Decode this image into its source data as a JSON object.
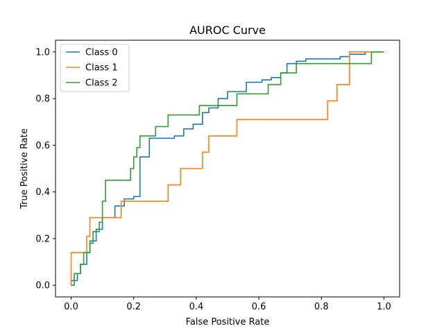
{
  "chart_data": {
    "type": "line",
    "title": "AUROC Curve",
    "xlabel": "False Positive Rate",
    "ylabel": "True Positive Rate",
    "xlim": [
      -0.05,
      1.05
    ],
    "ylim": [
      -0.05,
      1.05
    ],
    "xticks": [
      0.0,
      0.2,
      0.4,
      0.6,
      0.8,
      1.0
    ],
    "yticks": [
      0.0,
      0.2,
      0.4,
      0.6,
      0.8,
      1.0
    ],
    "xtick_labels": [
      "0.0",
      "0.2",
      "0.4",
      "0.6",
      "0.8",
      "1.0"
    ],
    "ytick_labels": [
      "0.0",
      "0.2",
      "0.4",
      "0.6",
      "0.8",
      "1.0"
    ],
    "grid": false,
    "legend_position": "top-left",
    "series": [
      {
        "name": "Class 0",
        "color": "#1f77b4",
        "x": [
          0.0,
          0.0,
          0.02,
          0.02,
          0.03,
          0.03,
          0.05,
          0.05,
          0.06,
          0.06,
          0.08,
          0.08,
          0.1,
          0.1,
          0.14,
          0.14,
          0.17,
          0.17,
          0.2,
          0.2,
          0.22,
          0.22,
          0.25,
          0.25,
          0.33,
          0.33,
          0.36,
          0.36,
          0.39,
          0.39,
          0.42,
          0.42,
          0.44,
          0.44,
          0.47,
          0.47,
          0.5,
          0.5,
          0.56,
          0.56,
          0.61,
          0.61,
          0.64,
          0.64,
          0.67,
          0.67,
          0.69,
          0.69,
          0.72,
          0.72,
          0.75,
          0.75,
          0.86,
          0.86,
          0.89,
          0.89,
          0.94,
          0.94,
          1.0
        ],
        "y": [
          0.0,
          0.02,
          0.02,
          0.05,
          0.05,
          0.09,
          0.09,
          0.14,
          0.14,
          0.19,
          0.19,
          0.24,
          0.24,
          0.29,
          0.29,
          0.34,
          0.34,
          0.37,
          0.37,
          0.38,
          0.38,
          0.55,
          0.55,
          0.63,
          0.63,
          0.64,
          0.64,
          0.67,
          0.67,
          0.69,
          0.69,
          0.74,
          0.74,
          0.76,
          0.76,
          0.8,
          0.8,
          0.83,
          0.83,
          0.87,
          0.87,
          0.88,
          0.88,
          0.89,
          0.89,
          0.91,
          0.91,
          0.95,
          0.95,
          0.96,
          0.96,
          0.97,
          0.97,
          0.98,
          0.98,
          0.99,
          0.99,
          1.0,
          1.0
        ]
      },
      {
        "name": "Class 1",
        "color": "#ff7f0e",
        "x": [
          0.0,
          0.0,
          0.05,
          0.05,
          0.06,
          0.06,
          0.16,
          0.16,
          0.31,
          0.31,
          0.35,
          0.35,
          0.42,
          0.42,
          0.44,
          0.44,
          0.53,
          0.53,
          0.82,
          0.82,
          0.85,
          0.85,
          0.89,
          0.89,
          1.0
        ],
        "y": [
          0.0,
          0.14,
          0.14,
          0.21,
          0.21,
          0.29,
          0.29,
          0.36,
          0.36,
          0.43,
          0.43,
          0.5,
          0.5,
          0.57,
          0.57,
          0.64,
          0.64,
          0.71,
          0.71,
          0.79,
          0.79,
          0.86,
          0.86,
          1.0,
          1.0
        ]
      },
      {
        "name": "Class 2",
        "color": "#2ca02c",
        "x": [
          0.0,
          0.01,
          0.01,
          0.03,
          0.03,
          0.04,
          0.04,
          0.06,
          0.06,
          0.07,
          0.07,
          0.09,
          0.09,
          0.1,
          0.1,
          0.11,
          0.11,
          0.19,
          0.19,
          0.2,
          0.2,
          0.21,
          0.21,
          0.22,
          0.22,
          0.27,
          0.27,
          0.31,
          0.31,
          0.41,
          0.41,
          0.53,
          0.53,
          0.63,
          0.63,
          0.67,
          0.67,
          0.72,
          0.72,
          0.96,
          0.96,
          1.0
        ],
        "y": [
          0.0,
          0.0,
          0.05,
          0.05,
          0.09,
          0.09,
          0.14,
          0.14,
          0.18,
          0.18,
          0.23,
          0.23,
          0.27,
          0.27,
          0.36,
          0.36,
          0.45,
          0.45,
          0.5,
          0.5,
          0.55,
          0.55,
          0.59,
          0.59,
          0.64,
          0.64,
          0.68,
          0.68,
          0.73,
          0.73,
          0.77,
          0.77,
          0.82,
          0.82,
          0.86,
          0.86,
          0.91,
          0.91,
          0.95,
          0.95,
          1.0,
          1.0
        ]
      }
    ]
  }
}
